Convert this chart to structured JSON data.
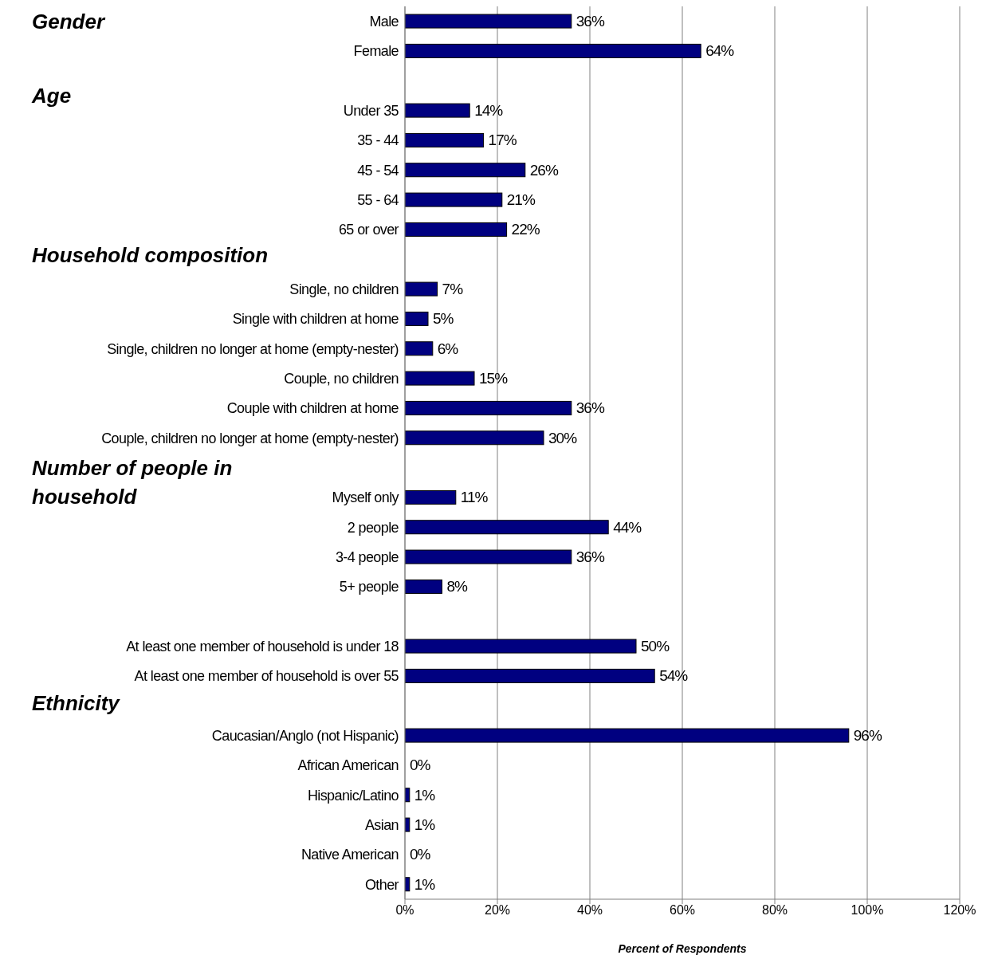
{
  "chart_data": {
    "type": "bar",
    "orientation": "horizontal",
    "xlabel": "Percent of Respondents",
    "categories": [
      "Male",
      "Female",
      null,
      "Under 35",
      "35 - 44",
      "45 - 54",
      "55 - 64",
      "65 or over",
      null,
      "Single, no children",
      "Single with children at home",
      "Single, children no longer at home (empty-nester)",
      "Couple, no children",
      "Couple with children at home",
      "Couple, children no longer at home (empty-nester)",
      null,
      "Myself only",
      "2 people",
      "3-4 people",
      "5+ people",
      null,
      "At least one member of household is under 18",
      "At least one member of household is over 55",
      null,
      "Caucasian/Anglo (not Hispanic)",
      "African American",
      "Hispanic/Latino",
      "Asian",
      "Native American",
      "Other"
    ],
    "values": [
      36,
      64,
      null,
      14,
      17,
      26,
      21,
      22,
      null,
      7,
      5,
      6,
      15,
      36,
      30,
      null,
      11,
      44,
      36,
      8,
      null,
      50,
      54,
      null,
      96,
      0,
      1,
      1,
      0,
      1
    ],
    "value_labels": [
      "36%",
      "64%",
      null,
      "14%",
      "17%",
      "26%",
      "21%",
      "22%",
      null,
      "7%",
      "5%",
      "6%",
      "15%",
      "36%",
      "30%",
      null,
      "11%",
      "44%",
      "36%",
      "8%",
      null,
      "50%",
      "54%",
      null,
      "96%",
      "0%",
      "1%",
      "1%",
      "0%",
      "1%"
    ],
    "color": "#000080",
    "xlim": [
      0,
      120
    ],
    "xticks": [
      {
        "value": 0,
        "label": "0%"
      },
      {
        "value": 20,
        "label": "20%"
      },
      {
        "value": 40,
        "label": "40%"
      },
      {
        "value": 60,
        "label": "60%"
      },
      {
        "value": 80,
        "label": "80%"
      },
      {
        "value": 100,
        "label": "100%"
      },
      {
        "value": 120,
        "label": "120%"
      }
    ],
    "grid": "x",
    "annotations": [
      "Gender",
      "Age",
      "Household composition",
      "Number of people in household",
      "Ethnicity"
    ]
  }
}
